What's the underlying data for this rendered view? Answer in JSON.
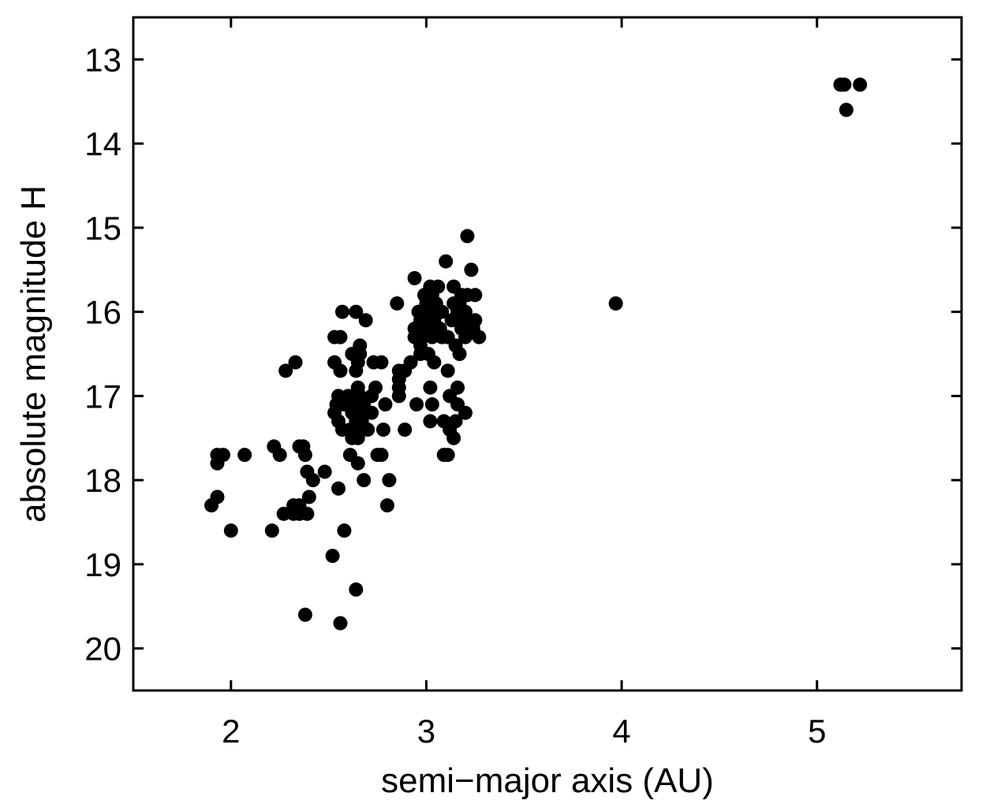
{
  "chart_data": {
    "type": "scatter",
    "title": "",
    "xlabel": "semi−major axis (AU)",
    "ylabel": "absolute magnitude H",
    "xlim": [
      1.5,
      5.74
    ],
    "ylim": [
      20.5,
      12.5
    ],
    "y_inverted": true,
    "x_ticks": [
      2,
      3,
      4,
      5
    ],
    "x_tick_labels": [
      "2",
      "3",
      "4",
      "5"
    ],
    "y_ticks": [
      13,
      14,
      15,
      16,
      17,
      18,
      19,
      20
    ],
    "y_tick_labels": [
      "13",
      "14",
      "15",
      "16",
      "17",
      "18",
      "19",
      "20"
    ],
    "grid": false,
    "legend": "none",
    "marker_color": "#000000",
    "series": [
      {
        "points": [
          [
            5.12,
            13.3
          ],
          [
            5.14,
            13.3
          ],
          [
            5.22,
            13.3
          ],
          [
            5.15,
            13.6
          ],
          [
            3.97,
            15.9
          ],
          [
            3.21,
            15.1
          ],
          [
            3.1,
            15.4
          ],
          [
            3.23,
            15.5
          ],
          [
            2.94,
            15.6
          ],
          [
            3.02,
            15.7
          ],
          [
            3.06,
            15.7
          ],
          [
            3.14,
            15.7
          ],
          [
            2.99,
            15.8
          ],
          [
            3.03,
            15.8
          ],
          [
            3.18,
            15.8
          ],
          [
            3.21,
            15.8
          ],
          [
            3.25,
            15.8
          ],
          [
            2.85,
            15.9
          ],
          [
            3.0,
            15.9
          ],
          [
            3.05,
            15.9
          ],
          [
            3.14,
            15.9
          ],
          [
            3.17,
            15.9
          ],
          [
            2.96,
            16.0
          ],
          [
            3.01,
            16.0
          ],
          [
            3.08,
            16.0
          ],
          [
            3.16,
            16.0
          ],
          [
            3.2,
            16.0
          ],
          [
            2.57,
            16.0
          ],
          [
            2.64,
            16.0
          ],
          [
            2.69,
            16.1
          ],
          [
            2.97,
            16.1
          ],
          [
            3.04,
            16.1
          ],
          [
            3.13,
            16.1
          ],
          [
            3.16,
            16.1
          ],
          [
            3.19,
            16.1
          ],
          [
            3.25,
            16.1
          ],
          [
            2.94,
            16.2
          ],
          [
            3.0,
            16.2
          ],
          [
            3.07,
            16.2
          ],
          [
            3.18,
            16.2
          ],
          [
            3.24,
            16.2
          ],
          [
            2.53,
            16.3
          ],
          [
            2.56,
            16.3
          ],
          [
            2.94,
            16.3
          ],
          [
            2.98,
            16.3
          ],
          [
            3.03,
            16.3
          ],
          [
            3.08,
            16.3
          ],
          [
            3.11,
            16.3
          ],
          [
            3.2,
            16.3
          ],
          [
            3.27,
            16.3
          ],
          [
            2.66,
            16.4
          ],
          [
            2.97,
            16.4
          ],
          [
            3.15,
            16.4
          ],
          [
            2.62,
            16.5
          ],
          [
            2.66,
            16.5
          ],
          [
            2.97,
            16.5
          ],
          [
            3.01,
            16.5
          ],
          [
            3.17,
            16.5
          ],
          [
            2.33,
            16.6
          ],
          [
            2.53,
            16.6
          ],
          [
            2.65,
            16.6
          ],
          [
            2.73,
            16.6
          ],
          [
            2.77,
            16.6
          ],
          [
            2.92,
            16.6
          ],
          [
            3.04,
            16.6
          ],
          [
            2.28,
            16.7
          ],
          [
            2.56,
            16.7
          ],
          [
            2.64,
            16.7
          ],
          [
            2.86,
            16.7
          ],
          [
            2.89,
            16.7
          ],
          [
            3.11,
            16.7
          ],
          [
            2.86,
            16.8
          ],
          [
            2.65,
            16.9
          ],
          [
            2.74,
            16.9
          ],
          [
            2.86,
            16.9
          ],
          [
            3.02,
            16.9
          ],
          [
            3.16,
            16.9
          ],
          [
            2.55,
            17.0
          ],
          [
            2.6,
            17.0
          ],
          [
            2.63,
            17.0
          ],
          [
            2.66,
            17.0
          ],
          [
            2.72,
            17.0
          ],
          [
            2.86,
            17.0
          ],
          [
            3.12,
            17.0
          ],
          [
            2.54,
            17.1
          ],
          [
            2.58,
            17.1
          ],
          [
            2.62,
            17.1
          ],
          [
            2.65,
            17.1
          ],
          [
            2.68,
            17.1
          ],
          [
            2.79,
            17.1
          ],
          [
            2.95,
            17.1
          ],
          [
            3.03,
            17.1
          ],
          [
            3.16,
            17.1
          ],
          [
            2.53,
            17.2
          ],
          [
            2.62,
            17.2
          ],
          [
            2.66,
            17.2
          ],
          [
            2.72,
            17.2
          ],
          [
            3.2,
            17.2
          ],
          [
            2.55,
            17.3
          ],
          [
            2.64,
            17.3
          ],
          [
            2.67,
            17.3
          ],
          [
            3.02,
            17.3
          ],
          [
            3.09,
            17.3
          ],
          [
            3.15,
            17.3
          ],
          [
            2.57,
            17.4
          ],
          [
            2.61,
            17.4
          ],
          [
            2.64,
            17.4
          ],
          [
            2.7,
            17.4
          ],
          [
            2.78,
            17.4
          ],
          [
            2.89,
            17.4
          ],
          [
            3.12,
            17.4
          ],
          [
            2.62,
            17.5
          ],
          [
            2.65,
            17.5
          ],
          [
            3.14,
            17.5
          ],
          [
            2.22,
            17.6
          ],
          [
            2.35,
            17.6
          ],
          [
            2.37,
            17.6
          ],
          [
            1.93,
            17.7
          ],
          [
            1.96,
            17.7
          ],
          [
            2.07,
            17.7
          ],
          [
            2.25,
            17.7
          ],
          [
            2.38,
            17.7
          ],
          [
            2.61,
            17.7
          ],
          [
            2.75,
            17.7
          ],
          [
            2.77,
            17.7
          ],
          [
            3.09,
            17.7
          ],
          [
            3.11,
            17.7
          ],
          [
            1.93,
            17.8
          ],
          [
            2.65,
            17.8
          ],
          [
            2.39,
            17.9
          ],
          [
            2.48,
            17.9
          ],
          [
            2.42,
            18.0
          ],
          [
            2.68,
            18.0
          ],
          [
            2.81,
            18.0
          ],
          [
            2.55,
            18.1
          ],
          [
            1.93,
            18.2
          ],
          [
            2.4,
            18.2
          ],
          [
            1.9,
            18.3
          ],
          [
            2.32,
            18.3
          ],
          [
            2.35,
            18.3
          ],
          [
            2.8,
            18.3
          ],
          [
            2.27,
            18.4
          ],
          [
            2.32,
            18.4
          ],
          [
            2.35,
            18.4
          ],
          [
            2.39,
            18.4
          ],
          [
            2.0,
            18.6
          ],
          [
            2.21,
            18.6
          ],
          [
            2.58,
            18.6
          ],
          [
            2.52,
            18.9
          ],
          [
            2.64,
            19.3
          ],
          [
            2.38,
            19.6
          ],
          [
            2.56,
            19.7
          ]
        ]
      }
    ]
  }
}
